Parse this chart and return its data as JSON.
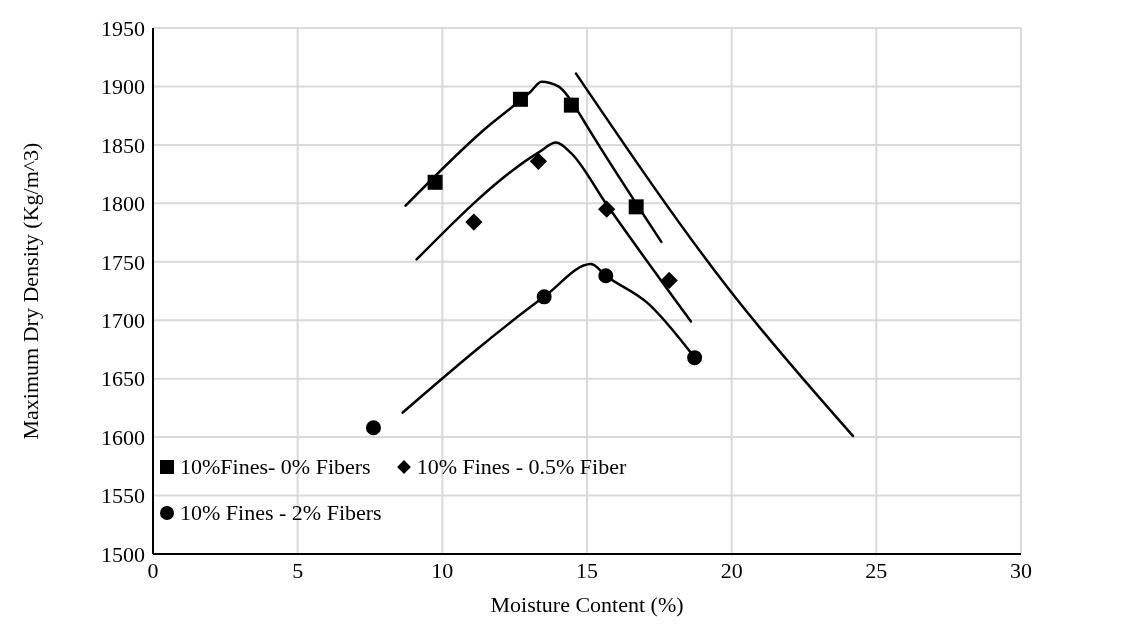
{
  "chart_data": {
    "type": "scatter",
    "xlabel": "Moisture Content (%)",
    "ylabel": "Maximum Dry Density (Kg/m^3)",
    "xlim": [
      0,
      30
    ],
    "xticks": [
      0,
      5,
      10,
      15,
      20,
      25,
      30
    ],
    "ylim": [
      1500,
      1950
    ],
    "yticks": [
      1500,
      1550,
      1600,
      1650,
      1700,
      1750,
      1800,
      1850,
      1900,
      1950
    ],
    "grid": true,
    "legend": "bottom left",
    "series": [
      {
        "name": "10%Fines- 0% Fibers",
        "marker": "square",
        "color": "#000000",
        "x": [
          9.75,
          12.7,
          14.46,
          16.7
        ],
        "values": [
          1818,
          1889,
          1884,
          1797
        ]
      },
      {
        "name": "10% Fines - 0.5% Fiber",
        "marker": "diamond",
        "color": "#000000",
        "x": [
          11.09,
          13.32,
          15.68,
          17.84
        ],
        "values": [
          1784,
          1836,
          1795,
          1734
        ]
      },
      {
        "name": "10% Fines - 2% Fibers",
        "marker": "circle",
        "color": "#000000",
        "x": [
          7.62,
          13.52,
          15.65,
          18.72
        ],
        "values": [
          1608,
          1720,
          1738,
          1668
        ]
      },
      {
        "type": "line",
        "color": "#000000",
        "x": [
          8.73,
          11.44,
          13.03,
          13.43,
          14.01,
          14.73,
          15.0,
          17.57
        ],
        "values": [
          1798,
          1863,
          1895,
          1904,
          1900,
          1877,
          1866,
          1767
        ]
      },
      {
        "type": "line",
        "color": "#000000",
        "x": [
          9.11,
          13.36,
          13.93,
          14.45,
          15.65,
          18.59
        ],
        "values": [
          1752,
          1844,
          1852,
          1843,
          1800,
          1699
        ]
      },
      {
        "type": "line",
        "color": "#000000",
        "x": [
          8.63,
          13.52,
          15.14,
          15.65,
          17.08,
          18.72
        ],
        "values": [
          1621,
          1720,
          1748,
          1738,
          1715,
          1668
        ]
      },
      {
        "type": "line",
        "color": "#000000",
        "x": [
          14.62,
          19.92,
          24.19
        ],
        "values": [
          1911,
          1726,
          1601
        ]
      }
    ]
  }
}
